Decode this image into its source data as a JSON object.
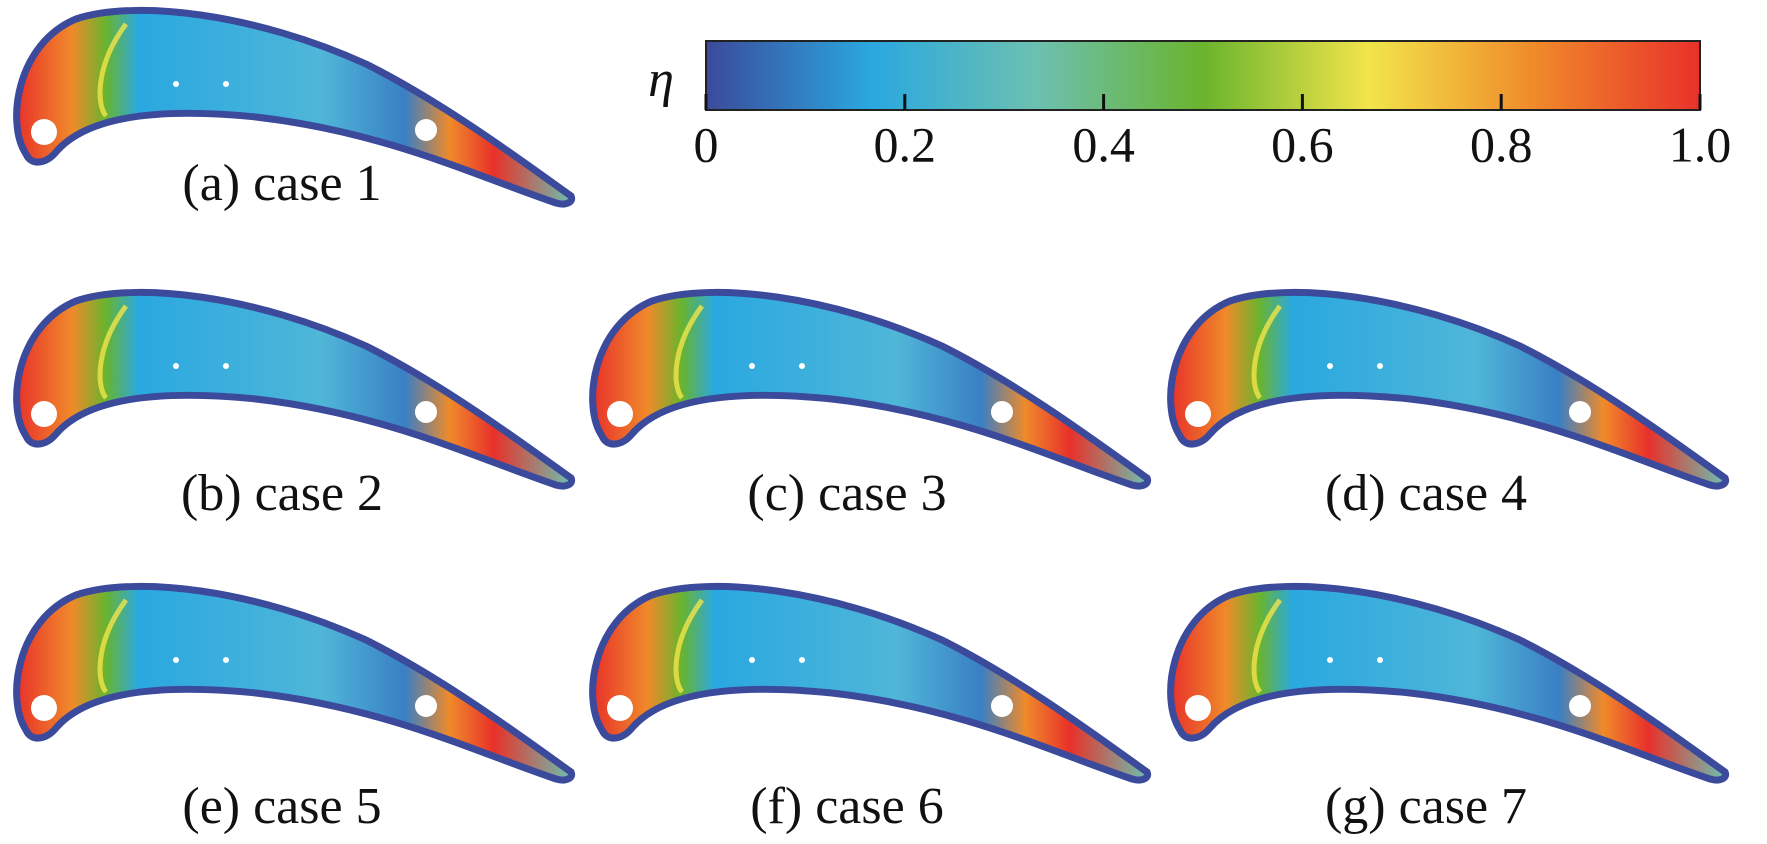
{
  "colorbar": {
    "label": "η",
    "lim": [
      0,
      1
    ],
    "ticks": [
      0,
      0.2,
      0.4,
      0.6,
      0.8,
      {
        "value": 1,
        "label": "1.0"
      }
    ],
    "colormap": [
      "#3b4a9b",
      "#2aa8e0",
      "#6cc0b0",
      "#6ab42d",
      "#f2e54a",
      "#f08a2a",
      "#e8312a"
    ]
  },
  "panels": [
    {
      "label": "(a) case 1"
    },
    {
      "label": "(b) case 2"
    },
    {
      "label": "(c) case 3"
    },
    {
      "label": "(d) case 4"
    },
    {
      "label": "(e) case 5"
    },
    {
      "label": "(f) case 6"
    },
    {
      "label": "(g) case 7"
    }
  ]
}
